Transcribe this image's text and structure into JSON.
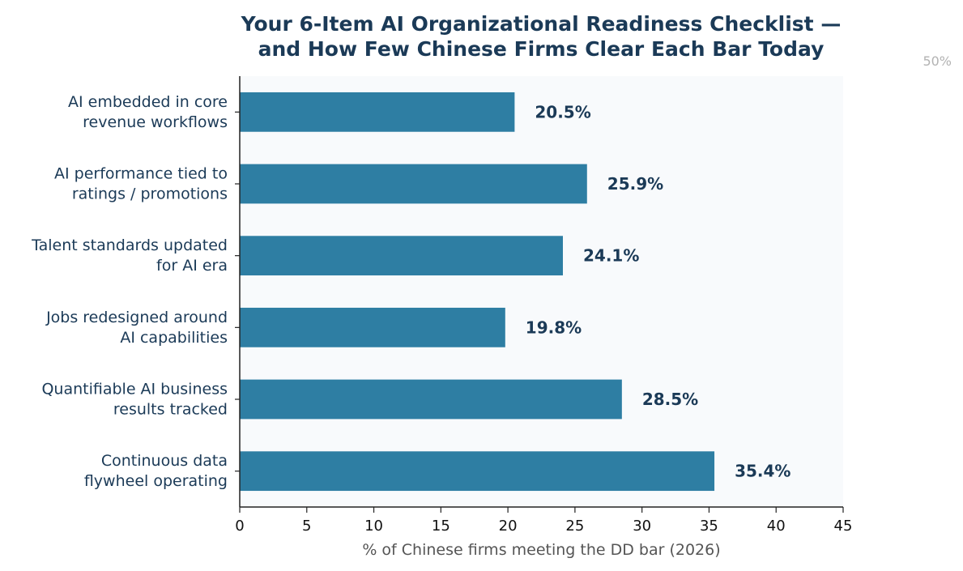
{
  "chart_data": {
    "type": "bar",
    "orientation": "horizontal",
    "title": "Your 6-Item AI Organizational Readiness Checklist —\nand How Few Chinese Firms Clear Each Bar Today",
    "xlabel": "% of Chinese firms meeting the DD bar (2026)",
    "ylabel": "",
    "xlim": [
      0,
      45
    ],
    "xticks": [
      0,
      5,
      10,
      15,
      20,
      25,
      30,
      35,
      40,
      45
    ],
    "categories": [
      "AI embedded in core\nrevenue workflows",
      "AI performance tied to\nratings / promotions",
      "Talent standards updated\nfor AI era",
      "Jobs redesigned around\nAI capabilities",
      "Quantifiable AI business\nresults tracked",
      "Continuous data\nflywheel operating"
    ],
    "values": [
      20.5,
      25.9,
      24.1,
      19.8,
      28.5,
      35.4
    ],
    "value_labels": [
      "20.5%",
      "25.9%",
      "24.1%",
      "19.8%",
      "28.5%",
      "35.4%"
    ],
    "reference_label": "50%",
    "grid": false,
    "legend": "none",
    "colors": {
      "bar": "#2e7ea3",
      "plot_background": "#f8fafc",
      "text": "#1b3a57",
      "axis": "#222222",
      "reference": "#b3b3b3"
    }
  }
}
